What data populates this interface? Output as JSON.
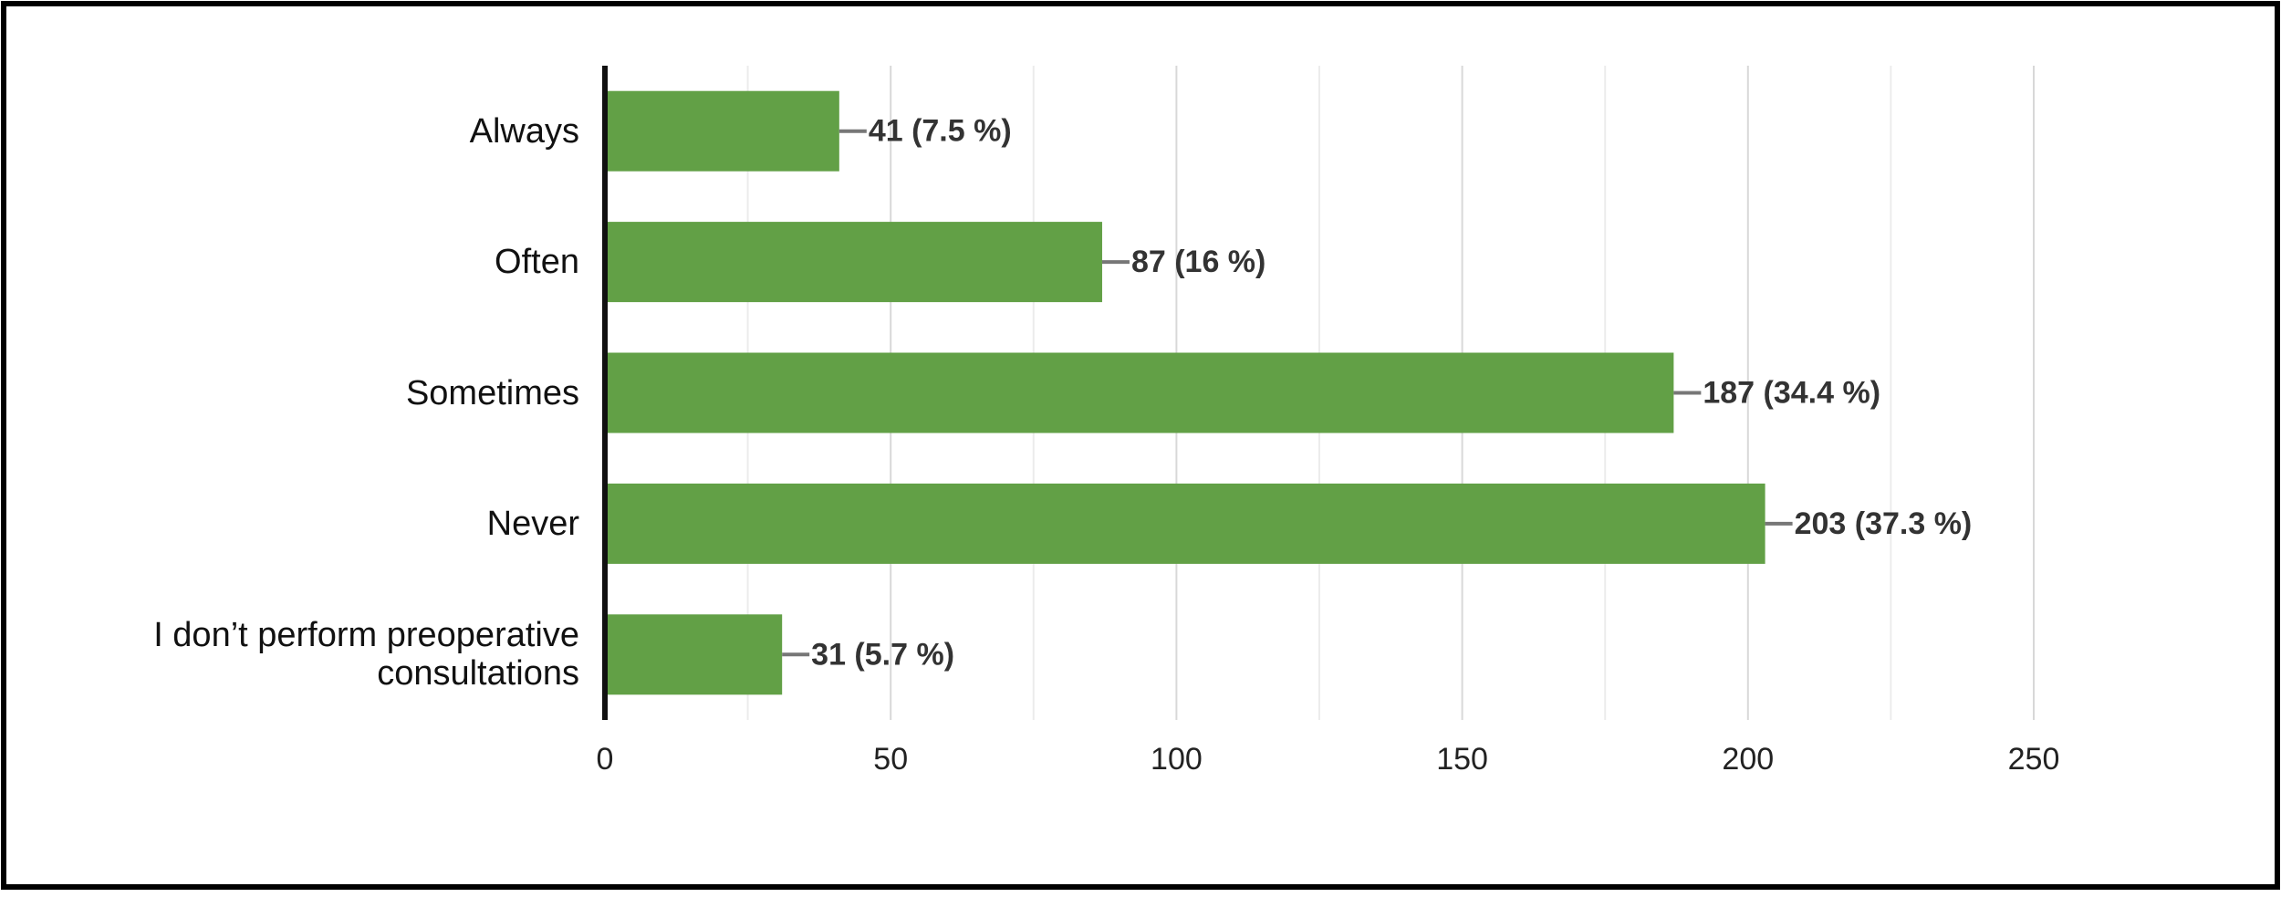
{
  "chart_data": {
    "type": "bar",
    "orientation": "horizontal",
    "categories": [
      "Always",
      "Often",
      "Sometimes",
      "Never",
      "I don’t perform preoperative consultations"
    ],
    "values": [
      41,
      87,
      187,
      203,
      31
    ],
    "value_labels": [
      "41 (7.5 %)",
      "87 (16 %)",
      "187 (34.4 %)",
      "203 (37.3 %)",
      "31 (5.7 %)"
    ],
    "color": "#62a046",
    "xlim": [
      0,
      250
    ],
    "xticks": [
      0,
      50,
      100,
      150,
      200,
      250
    ],
    "minor_xticks": [
      25,
      75,
      125,
      175,
      225
    ],
    "grid": true
  }
}
